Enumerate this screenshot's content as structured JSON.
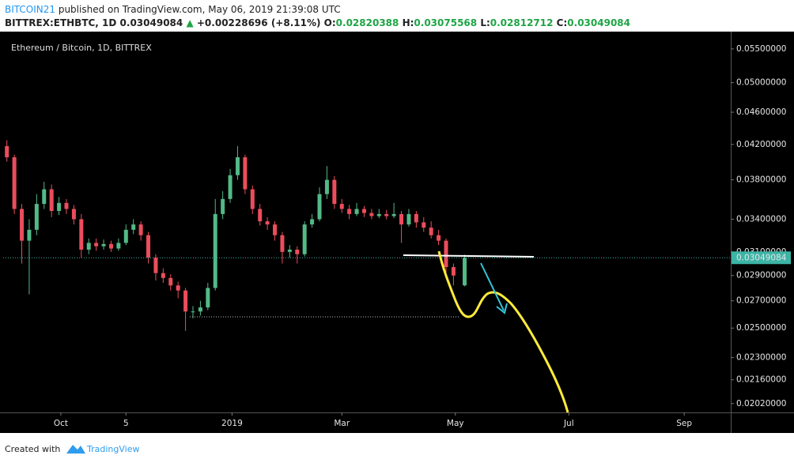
{
  "header": {
    "author": "BITCOIN21",
    "published": " published on TradingView.com, May 06, 2019 21:39:08 UTC",
    "symbol": "BITTREX:ETHBTC, 1D",
    "change": "+0.00228696 (+8.11%)",
    "o": "O:",
    "h": "H:",
    "l": "L:",
    "c": "C:"
  },
  "footer": {
    "created": "Created with",
    "brand": "TradingView"
  },
  "chart_data": {
    "type": "candlestick",
    "title": "Ethereum / Bitcoin, 1D, BITTREX",
    "log_scale": true,
    "grid": false,
    "up_color": "#53b987",
    "down_color": "#eb4d5c",
    "x": [
      "2018-09-02",
      "2018-09-06",
      "2018-09-10",
      "2018-09-14",
      "2018-09-18",
      "2018-09-22",
      "2018-09-26",
      "2018-09-30",
      "2018-10-04",
      "2018-10-08",
      "2018-10-12",
      "2018-10-16",
      "2018-10-20",
      "2018-10-24",
      "2018-10-28",
      "2018-11-01",
      "2018-11-05",
      "2018-11-09",
      "2018-11-13",
      "2018-11-17",
      "2018-11-21",
      "2018-11-25",
      "2018-11-29",
      "2018-12-03",
      "2018-12-07",
      "2018-12-11",
      "2018-12-15",
      "2018-12-19",
      "2018-12-23",
      "2018-12-27",
      "2018-12-31",
      "2019-01-04",
      "2019-01-08",
      "2019-01-12",
      "2019-01-16",
      "2019-01-20",
      "2019-01-24",
      "2019-01-28",
      "2019-02-01",
      "2019-02-05",
      "2019-02-09",
      "2019-02-13",
      "2019-02-17",
      "2019-02-21",
      "2019-02-25",
      "2019-03-01",
      "2019-03-05",
      "2019-03-09",
      "2019-03-13",
      "2019-03-17",
      "2019-03-21",
      "2019-03-25",
      "2019-03-29",
      "2019-04-02",
      "2019-04-06",
      "2019-04-10",
      "2019-04-14",
      "2019-04-18",
      "2019-04-22",
      "2019-04-26",
      "2019-04-30",
      "2019-05-06"
    ],
    "open": [
      0.0418,
      0.0405,
      0.035,
      0.032,
      0.033,
      0.0355,
      0.037,
      0.0348,
      0.0356,
      0.035,
      0.034,
      0.0312,
      0.0318,
      0.0315,
      0.0317,
      0.0313,
      0.0318,
      0.033,
      0.0335,
      0.0325,
      0.0305,
      0.0292,
      0.0288,
      0.0282,
      0.0278,
      0.0262,
      0.0262,
      0.0265,
      0.028,
      0.0345,
      0.036,
      0.0385,
      0.0405,
      0.037,
      0.035,
      0.0338,
      0.0335,
      0.0325,
      0.031,
      0.0312,
      0.0308,
      0.0335,
      0.034,
      0.0365,
      0.038,
      0.0355,
      0.035,
      0.0345,
      0.035,
      0.0346,
      0.0343,
      0.0345,
      0.0343,
      0.0345,
      0.0335,
      0.0345,
      0.0337,
      0.0332,
      0.0325,
      0.032,
      0.0297,
      0.02820388
    ],
    "high": [
      0.0425,
      0.0408,
      0.0355,
      0.034,
      0.0365,
      0.0378,
      0.0375,
      0.0362,
      0.036,
      0.0354,
      0.0345,
      0.0322,
      0.0322,
      0.0321,
      0.032,
      0.0322,
      0.0335,
      0.034,
      0.0338,
      0.0328,
      0.0308,
      0.0296,
      0.0291,
      0.0285,
      0.028,
      0.0266,
      0.027,
      0.0284,
      0.036,
      0.0368,
      0.0392,
      0.0418,
      0.0408,
      0.0374,
      0.0355,
      0.0342,
      0.0338,
      0.0328,
      0.0316,
      0.0315,
      0.0338,
      0.0345,
      0.0372,
      0.0395,
      0.0384,
      0.036,
      0.0354,
      0.0356,
      0.0353,
      0.035,
      0.035,
      0.0349,
      0.0356,
      0.0348,
      0.035,
      0.0348,
      0.0342,
      0.0338,
      0.033,
      0.0322,
      0.03,
      0.03075568
    ],
    "low": [
      0.04,
      0.0345,
      0.03,
      0.0275,
      0.0325,
      0.035,
      0.0342,
      0.0344,
      0.0345,
      0.0335,
      0.0305,
      0.0308,
      0.0311,
      0.0312,
      0.031,
      0.0311,
      0.0316,
      0.0326,
      0.032,
      0.03,
      0.0286,
      0.0284,
      0.0278,
      0.0272,
      0.0248,
      0.0257,
      0.0259,
      0.0263,
      0.0278,
      0.034,
      0.0356,
      0.038,
      0.0365,
      0.0345,
      0.0334,
      0.033,
      0.032,
      0.03,
      0.0305,
      0.03,
      0.0306,
      0.0332,
      0.0338,
      0.036,
      0.035,
      0.0346,
      0.034,
      0.0343,
      0.0342,
      0.034,
      0.0341,
      0.034,
      0.0341,
      0.0318,
      0.0333,
      0.0332,
      0.0328,
      0.0322,
      0.0316,
      0.0292,
      0.0282,
      0.02812712
    ],
    "close": [
      0.0405,
      0.035,
      0.032,
      0.033,
      0.0355,
      0.037,
      0.0348,
      0.0356,
      0.035,
      0.034,
      0.0312,
      0.0318,
      0.0315,
      0.0317,
      0.0313,
      0.0318,
      0.033,
      0.0335,
      0.0325,
      0.0305,
      0.0292,
      0.0288,
      0.0282,
      0.0278,
      0.0262,
      0.0262,
      0.0265,
      0.028,
      0.0345,
      0.036,
      0.0385,
      0.0405,
      0.037,
      0.035,
      0.0338,
      0.0335,
      0.0325,
      0.031,
      0.0312,
      0.0308,
      0.0335,
      0.034,
      0.0365,
      0.038,
      0.0355,
      0.035,
      0.0345,
      0.035,
      0.0346,
      0.0343,
      0.0345,
      0.0343,
      0.0345,
      0.0335,
      0.0345,
      0.0337,
      0.0332,
      0.0325,
      0.032,
      0.0297,
      0.029,
      0.03049084
    ],
    "xlim": [
      "2018-08-31",
      "2019-09-26"
    ],
    "xticks": [
      {
        "value": "2018-10-01",
        "label": "Oct"
      },
      {
        "value": "2018-11-05",
        "label": "5"
      },
      {
        "value": "2019-01-01",
        "label": "2019"
      },
      {
        "value": "2019-03-01",
        "label": "Mar"
      },
      {
        "value": "2019-05-01",
        "label": "May"
      },
      {
        "value": "2019-07-01",
        "label": "Jul"
      },
      {
        "value": "2019-09-01",
        "label": "Sep"
      }
    ],
    "ylim": [
      0.0197,
      0.0575
    ],
    "yticks": [
      {
        "value": 0.055,
        "label": "0.05500000"
      },
      {
        "value": 0.05,
        "label": "0.05000000"
      },
      {
        "value": 0.046,
        "label": "0.04600000"
      },
      {
        "value": 0.042,
        "label": "0.04200000"
      },
      {
        "value": 0.038,
        "label": "0.03800000"
      },
      {
        "value": 0.034,
        "label": "0.03400000"
      },
      {
        "value": 0.031,
        "label": "0.03100000"
      },
      {
        "value": 0.029,
        "label": "0.02900000"
      },
      {
        "value": 0.027,
        "label": "0.02700000"
      },
      {
        "value": 0.025,
        "label": "0.02500000"
      },
      {
        "value": 0.023,
        "label": "0.02300000"
      },
      {
        "value": 0.0216,
        "label": "0.02160000"
      },
      {
        "value": 0.0202,
        "label": "0.02020000"
      }
    ],
    "last_color": "#3cb4a6"
  }
}
